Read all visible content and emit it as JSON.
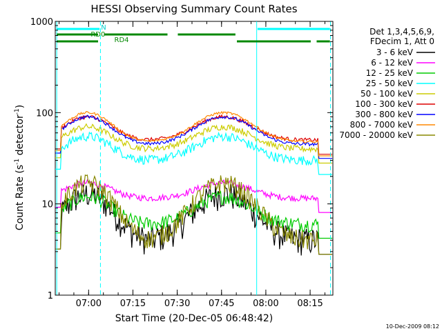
{
  "chart_data": {
    "type": "line",
    "title": "HESSI Observing Summary Count Rates",
    "xlabel": "Start Time (20-Dec-05 06:48:42)",
    "ylabel_main": "Count Rate (s",
    "ylabel_sup1": "-1",
    "ylabel_mid": " detector",
    "ylabel_sup2": "-1",
    "ylabel_end": ")",
    "yscale": "log",
    "ylim": [
      1,
      1000
    ],
    "xlim_minutes": [
      0,
      94
    ],
    "xticks": [
      {
        "label": "07:00",
        "t": 11.3
      },
      {
        "label": "07:15",
        "t": 26.3
      },
      {
        "label": "07:30",
        "t": 41.3
      },
      {
        "label": "07:45",
        "t": 56.3
      },
      {
        "label": "08:00",
        "t": 71.3
      },
      {
        "label": "08:15",
        "t": 86.3
      }
    ],
    "yticks": [
      {
        "label": "1",
        "v": 1
      },
      {
        "label": "10",
        "v": 10
      },
      {
        "label": "100",
        "v": 100
      },
      {
        "label": "1000",
        "v": 1000
      }
    ],
    "grid": false,
    "legend_placement": "right",
    "legend_header": [
      "Det 1,3,4,5,6,9,",
      "FDecim 1, Att 0"
    ],
    "series": [
      {
        "name": "3 - 6 keV",
        "color": "#000000",
        "base": 4,
        "peak": 13
      },
      {
        "name": "6 - 12 keV",
        "color": "#ff00ff",
        "base": 11.5,
        "peak": 17
      },
      {
        "name": "12 - 25 keV",
        "color": "#00cc00",
        "base": 6,
        "peak": 12
      },
      {
        "name": "25 - 50 keV",
        "color": "#00ffff",
        "base": 30,
        "peak": 55
      },
      {
        "name": "50 - 100 keV",
        "color": "#cccc00",
        "base": 40,
        "peak": 70
      },
      {
        "name": "100 - 300 keV",
        "color": "#dd0000",
        "base": 50,
        "peak": 90
      },
      {
        "name": "300 - 800 keV",
        "color": "#0000ff",
        "base": 45,
        "peak": 90
      },
      {
        "name": "800 - 7000 keV",
        "color": "#ff8800",
        "base": 48,
        "peak": 100
      },
      {
        "name": "7000 - 20000 keV",
        "color": "#888800",
        "base": 4,
        "peak": 17
      }
    ],
    "annotations": {
      "n_label": "N",
      "rd0_label": "RD0",
      "rd4_label": "RD4"
    },
    "footer_timestamp": "10-Dec-2009 08:12"
  }
}
